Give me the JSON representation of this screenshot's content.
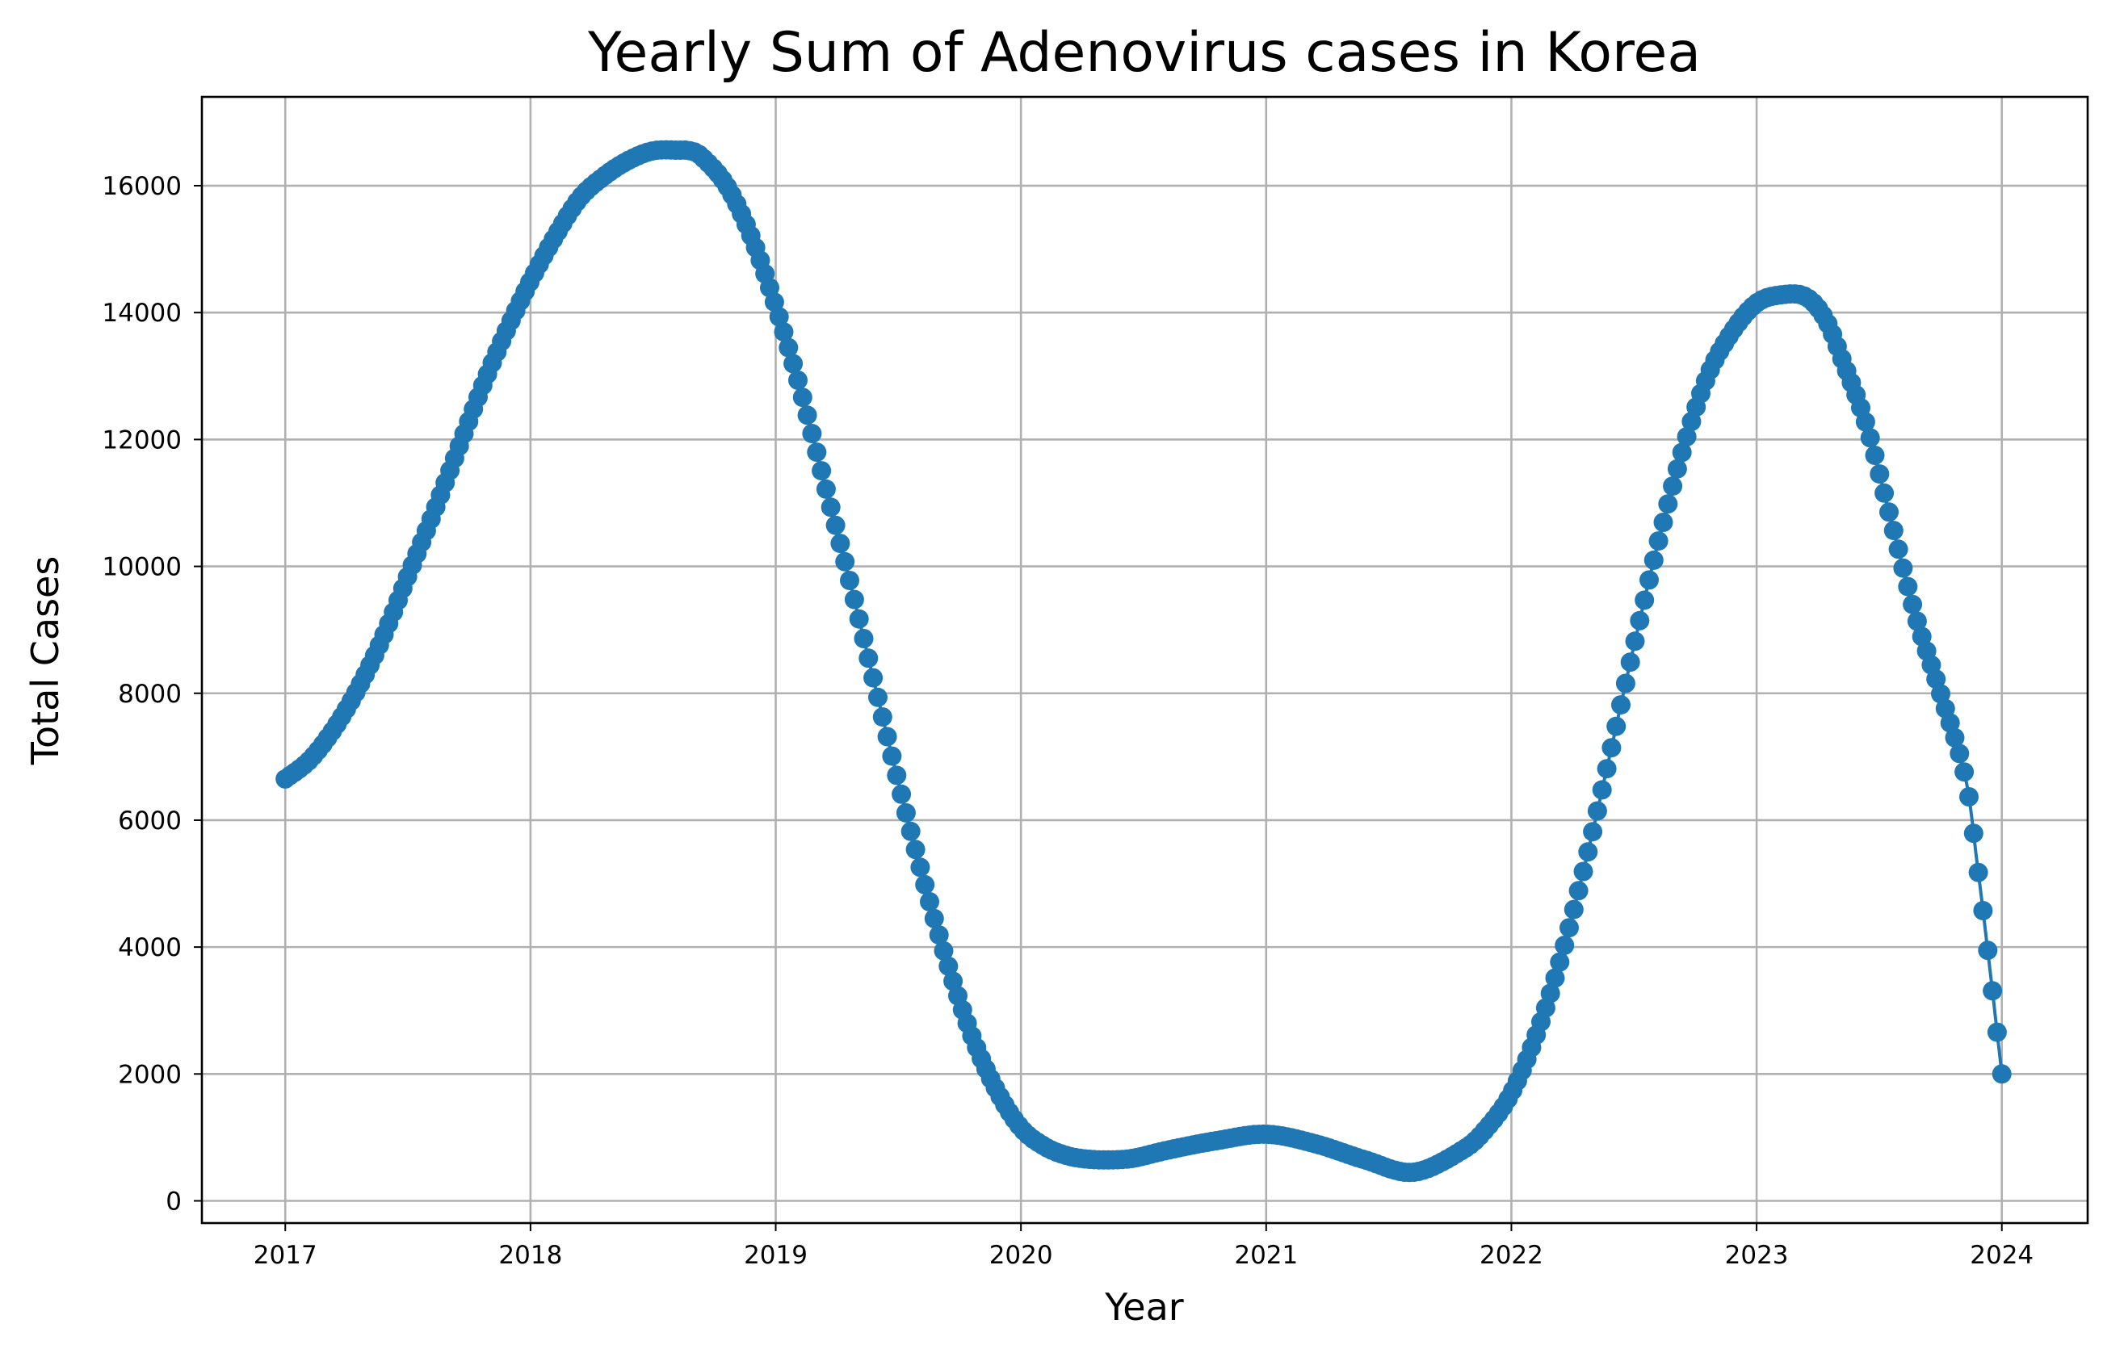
{
  "chart_data": {
    "type": "line",
    "title": "Yearly Sum of Adenovirus cases in Korea",
    "xlabel": "Year",
    "ylabel": "Total Cases",
    "xlim": [
      2016.66,
      2024.35
    ],
    "ylim": [
      -350,
      17400
    ],
    "grid": true,
    "xticks": [
      2017,
      2018,
      2019,
      2020,
      2021,
      2022,
      2023,
      2024
    ],
    "xtick_labels": [
      "2017",
      "2018",
      "2019",
      "2020",
      "2021",
      "2022",
      "2023",
      "2024"
    ],
    "yticks": [
      0,
      2000,
      4000,
      6000,
      8000,
      10000,
      12000,
      14000,
      16000
    ],
    "ytick_labels": [
      "0",
      "2000",
      "4000",
      "6000",
      "8000",
      "10000",
      "12000",
      "14000",
      "16000"
    ],
    "marker": "circle",
    "color": "#1f77b4",
    "series": [
      {
        "name": "",
        "x": [
          2017.0,
          2017.1,
          2017.2,
          2017.3,
          2017.4,
          2017.5,
          2017.6,
          2017.7,
          2017.8,
          2017.9,
          2018.0,
          2018.1,
          2018.2,
          2018.3,
          2018.4,
          2018.5,
          2018.6,
          2018.65,
          2018.7,
          2018.8,
          2018.9,
          2019.0,
          2019.1,
          2019.2,
          2019.3,
          2019.4,
          2019.5,
          2019.6,
          2019.7,
          2019.8,
          2019.9,
          2020.0,
          2020.1,
          2020.2,
          2020.3,
          2020.4,
          2020.47,
          2020.6,
          2020.8,
          2021.0,
          2021.2,
          2021.4,
          2021.6,
          2021.8,
          2021.9,
          2022.0,
          2022.1,
          2022.2,
          2022.3,
          2022.4,
          2022.5,
          2022.6,
          2022.7,
          2022.8,
          2022.9,
          2023.0,
          2023.1,
          2023.2,
          2023.28,
          2023.35,
          2023.45,
          2023.55,
          2023.65,
          2023.75,
          2023.85,
          2023.9,
          2023.95,
          2024.0
        ],
        "y": [
          6650,
          6950,
          7450,
          8100,
          8900,
          9850,
          10800,
          11800,
          12800,
          13700,
          14500,
          15200,
          15800,
          16150,
          16400,
          16550,
          16560,
          16550,
          16450,
          16000,
          15200,
          14100,
          12800,
          11300,
          9800,
          8200,
          6600,
          5100,
          3750,
          2600,
          1750,
          1150,
          850,
          700,
          650,
          650,
          680,
          800,
          950,
          1050,
          900,
          650,
          450,
          800,
          1150,
          1700,
          2600,
          3800,
          5300,
          7000,
          8750,
          10400,
          11850,
          13000,
          13700,
          14150,
          14280,
          14250,
          13900,
          13250,
          12200,
          10700,
          9200,
          8000,
          6700,
          5300,
          3700,
          2000
        ]
      }
    ]
  }
}
